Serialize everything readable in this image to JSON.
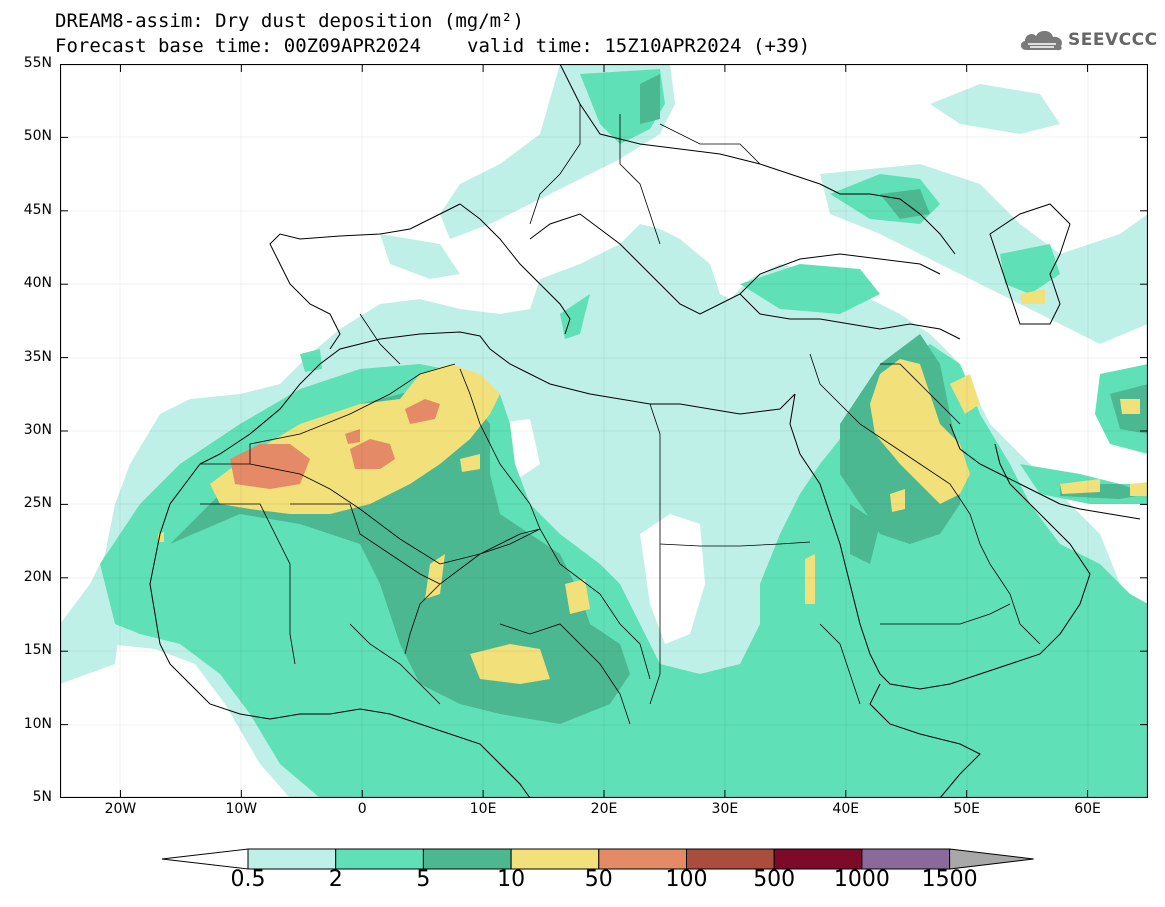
{
  "header": {
    "title_line1": "DREAM8-assim: Dry dust deposition (mg/m²)",
    "base_time": "Forecast base time: 00Z09APR2024",
    "valid_time": "valid time: 15Z10APR2024 (+39)"
  },
  "logo": {
    "text": "SEEVCCC",
    "icon": "cloud-icon"
  },
  "map": {
    "region": "North Africa, Europe and Middle East",
    "lon_range": [
      -25,
      65
    ],
    "lat_range": [
      5,
      55
    ],
    "lat_ticks": [
      {
        "value": 55,
        "label": "55N"
      },
      {
        "value": 50,
        "label": "50N"
      },
      {
        "value": 45,
        "label": "45N"
      },
      {
        "value": 40,
        "label": "40N"
      },
      {
        "value": 35,
        "label": "35N"
      },
      {
        "value": 30,
        "label": "30N"
      },
      {
        "value": 25,
        "label": "25N"
      },
      {
        "value": 20,
        "label": "20N"
      },
      {
        "value": 15,
        "label": "15N"
      },
      {
        "value": 10,
        "label": "10N"
      },
      {
        "value": 5,
        "label": "5N"
      }
    ],
    "lon_ticks": [
      {
        "value": -20,
        "label": "20W"
      },
      {
        "value": -10,
        "label": "10W"
      },
      {
        "value": 0,
        "label": "0"
      },
      {
        "value": 10,
        "label": "10E"
      },
      {
        "value": 20,
        "label": "20E"
      },
      {
        "value": 30,
        "label": "30E"
      },
      {
        "value": 40,
        "label": "40E"
      },
      {
        "value": 50,
        "label": "50E"
      },
      {
        "value": 60,
        "label": "60E"
      }
    ]
  },
  "legend": {
    "labels": [
      "0.5",
      "2",
      "5",
      "10",
      "50",
      "100",
      "500",
      "1000",
      "1500"
    ],
    "colors": [
      "#bff0e8",
      "#5fe0b6",
      "#4cb891",
      "#f2e07a",
      "#e48a66",
      "#ab4d3c",
      "#7e0a2a",
      "#8a6a9a",
      "#a8a8a8"
    ]
  }
}
